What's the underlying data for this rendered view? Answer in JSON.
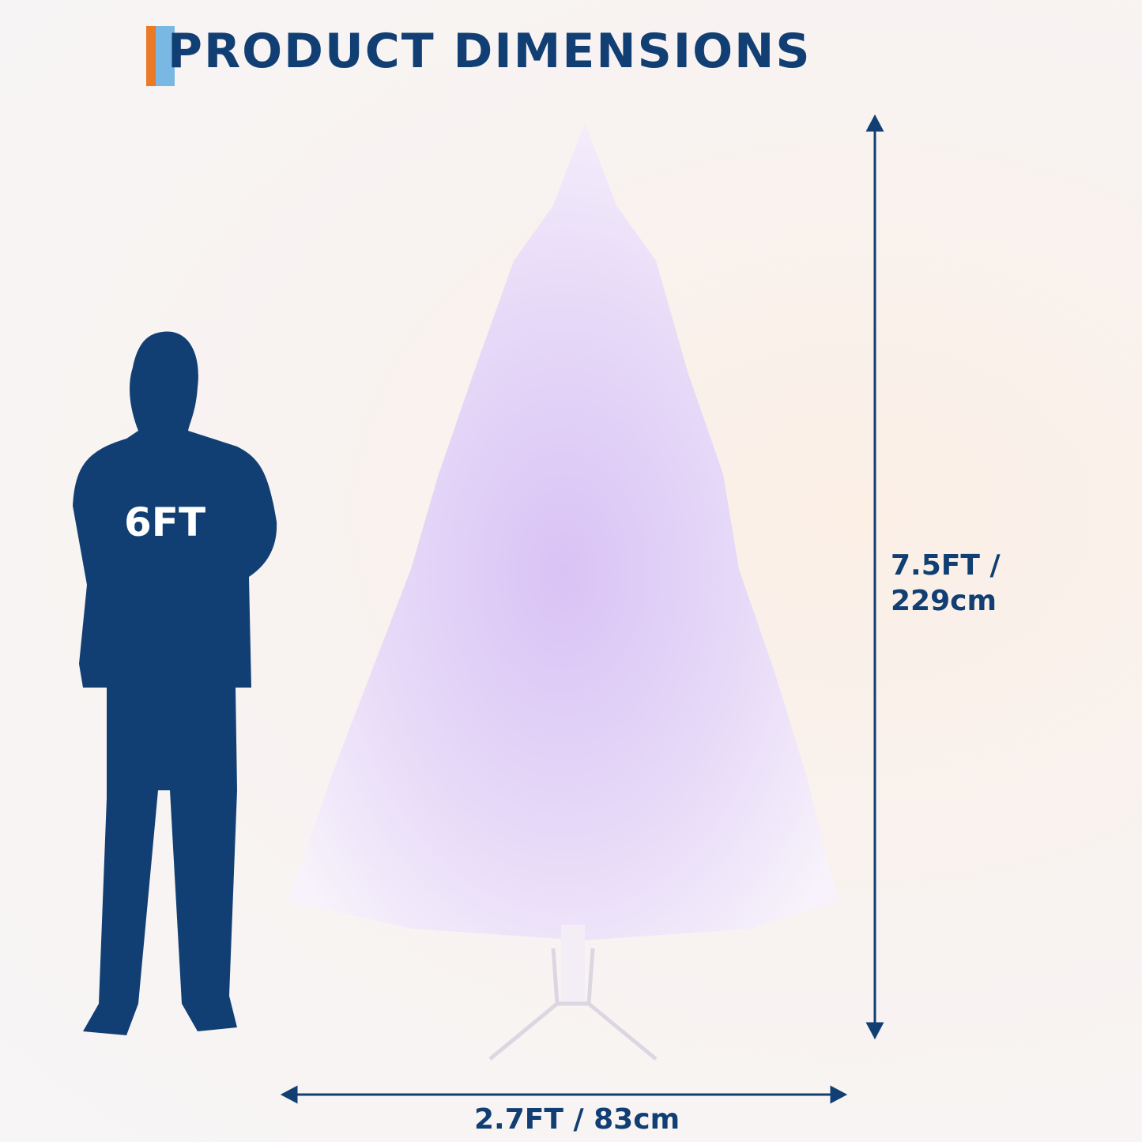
{
  "header": {
    "title": "PRODUCT DIMENSIONS"
  },
  "person": {
    "height_label": "6FT"
  },
  "tree": {
    "height_label_line1": "7.5FT /",
    "height_label_line2": "229cm",
    "width_label": "2.7FT / 83cm"
  },
  "colors": {
    "navy": "#123f73",
    "orange": "#ea7a27",
    "light_blue": "#78b8e3"
  }
}
